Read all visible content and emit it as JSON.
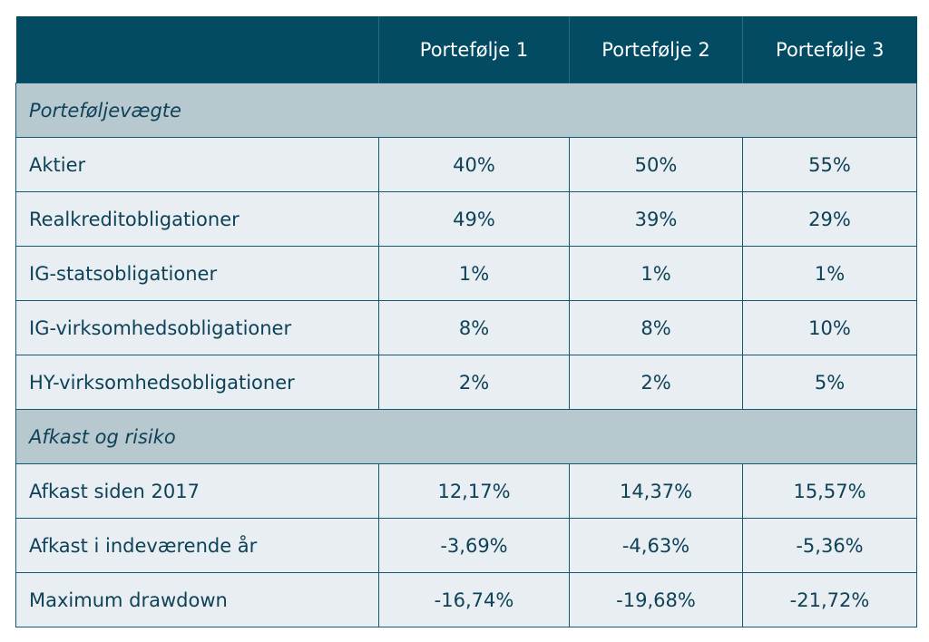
{
  "header": {
    "columns": [
      "",
      "Portefølje 1",
      "Portefølje 2",
      "Portefølje 3"
    ]
  },
  "sections": [
    {
      "title": "Porteføljevægte",
      "rows": [
        {
          "label": "Aktier",
          "values": [
            "40%",
            "50%",
            "55%"
          ]
        },
        {
          "label": "Realkreditobligationer",
          "values": [
            "49%",
            "39%",
            "29%"
          ]
        },
        {
          "label": "IG-statsobligationer",
          "values": [
            "1%",
            "1%",
            "1%"
          ]
        },
        {
          "label": "IG-virksomhedsobligationer",
          "values": [
            "8%",
            "8%",
            "10%"
          ]
        },
        {
          "label": "HY-virksomhedsobligationer",
          "values": [
            "2%",
            "2%",
            "5%"
          ]
        }
      ]
    },
    {
      "title": "Afkast og risiko",
      "rows": [
        {
          "label": "Afkast siden 2017",
          "values": [
            "12,17%",
            "14,37%",
            "15,57%"
          ]
        },
        {
          "label": "Afkast i indeværende år",
          "values": [
            "-3,69%",
            "-4,63%",
            "-5,36%"
          ]
        },
        {
          "label": "Maximum drawdown",
          "values": [
            "-16,74%",
            "-19,68%",
            "-21,72%"
          ]
        }
      ]
    }
  ],
  "colors": {
    "header_bg": "#024b62",
    "section_bg": "#b8c8cf",
    "row_bg": "#e8eef1",
    "text": "#0e4259"
  }
}
